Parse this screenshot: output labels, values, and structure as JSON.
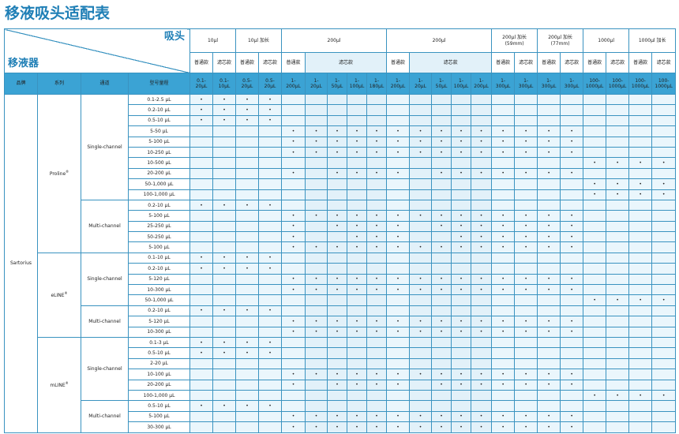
{
  "title": "移液吸头适配表",
  "header": {
    "tip_label": "吸头",
    "pipette_label": "移液器",
    "tip_groups": [
      {
        "label": "10μl",
        "sub": ""
      },
      {
        "label": "10μl 加长",
        "sub": ""
      },
      {
        "label": "200μl",
        "sub": ""
      },
      {
        "label": "200μl",
        "sub": ""
      },
      {
        "label": "200μl 加长",
        "sub": "(59mm)"
      },
      {
        "label": "200μl 加长",
        "sub": "(77mm)"
      },
      {
        "label": "1000μl",
        "sub": ""
      },
      {
        "label": "1000μl 加长",
        "sub": ""
      }
    ],
    "type_labels": [
      "普通款",
      "滤芯款",
      "普通款",
      "滤芯款",
      "普通款",
      "滤芯款",
      "普通款",
      "滤芯款",
      "普通款",
      "滤芯款",
      "普通款",
      "滤芯款",
      "普通款",
      "滤芯款",
      "普通款",
      "滤芯款"
    ],
    "col_headers": [
      "品牌",
      "系列",
      "通道",
      "型号量程"
    ],
    "tip_ranges": [
      "0.1-\n20μL",
      "0.1-\n10μL",
      "0.5-\n20μL",
      "0.5-\n20μL",
      "1-\n200μL",
      "1-\n20μL",
      "1-\n50μL",
      "1-\n100μL",
      "1-\n180μL",
      "1-\n200μL",
      "1-\n20μL",
      "1-\n50μL",
      "1-\n100μL",
      "1-\n200μL",
      "1-\n300μL",
      "1-\n300μL",
      "1-\n300μL",
      "1-\n300μL",
      "100-\n1000μL",
      "100-\n1000μL",
      "100-\n1000μL",
      "100-\n1000μL"
    ]
  },
  "brand": "Sartorius",
  "series": [
    {
      "name": "Proline",
      "mark": "®",
      "rows": 15
    },
    {
      "name": "eLINE",
      "mark": "®",
      "rows": 8
    },
    {
      "name": "mLINE",
      "mark": "®",
      "rows": 9
    }
  ],
  "channels": [
    {
      "name": "Single-channel",
      "rows": 10
    },
    {
      "name": "Multi-channel",
      "rows": 5
    },
    {
      "name": "Single-channel",
      "rows": 5
    },
    {
      "name": "Multi-channel",
      "rows": 3
    },
    {
      "name": "Single-channel",
      "rows": 6
    },
    {
      "name": "Multi-channel",
      "rows": 3
    }
  ],
  "rows": [
    {
      "model": "0.1-2.5 µL",
      "marks": [
        0,
        1,
        2,
        3
      ]
    },
    {
      "model": "0.2-10 µL",
      "marks": [
        0,
        1,
        2,
        3
      ]
    },
    {
      "model": "0.5-10 µL",
      "marks": [
        0,
        1,
        2,
        3
      ]
    },
    {
      "model": "5-50 µL",
      "marks": [
        4,
        5,
        6,
        7,
        8,
        9,
        10,
        11,
        12,
        13,
        14,
        15,
        16,
        17
      ]
    },
    {
      "model": "5-100 µL",
      "marks": [
        4,
        5,
        6,
        7,
        8,
        9,
        10,
        11,
        12,
        13,
        14,
        15,
        16,
        17
      ]
    },
    {
      "model": "10-250 µL",
      "marks": [
        4,
        5,
        6,
        7,
        8,
        9,
        10,
        11,
        12,
        13,
        14,
        15,
        16,
        17
      ]
    },
    {
      "model": "10-500 µL",
      "marks": [
        18,
        19,
        20,
        21
      ]
    },
    {
      "model": "20-200 µL",
      "marks": [
        4,
        6,
        7,
        8,
        9,
        11,
        12,
        13,
        14,
        15,
        16,
        17
      ]
    },
    {
      "model": "50-1,000 µL",
      "marks": [
        18,
        19,
        20,
        21
      ]
    },
    {
      "model": "100-1,000 µL",
      "marks": [
        18,
        19,
        20,
        21
      ]
    },
    {
      "model": "0.2-10 µL",
      "marks": [
        0,
        1,
        2,
        3
      ]
    },
    {
      "model": "5-100 µL",
      "marks": [
        4,
        5,
        6,
        7,
        8,
        9,
        10,
        11,
        12,
        13,
        14,
        15,
        16,
        17
      ]
    },
    {
      "model": "25-250 µL",
      "marks": [
        4,
        6,
        7,
        8,
        9,
        11,
        12,
        13,
        14,
        15,
        16,
        17
      ]
    },
    {
      "model": "50-250 µL",
      "marks": [
        4,
        7,
        8,
        9,
        12,
        13,
        14,
        15,
        16,
        17
      ]
    },
    {
      "model": "5-100 µL",
      "marks": [
        4,
        5,
        6,
        7,
        8,
        9,
        10,
        11,
        12,
        13,
        14,
        15,
        16,
        17
      ]
    },
    {
      "model": "0.1-10 µL",
      "marks": [
        0,
        1,
        2,
        3
      ]
    },
    {
      "model": "0.2-10 µL",
      "marks": [
        0,
        1,
        2,
        3
      ]
    },
    {
      "model": "5-120 µL",
      "marks": [
        4,
        5,
        6,
        7,
        8,
        9,
        10,
        11,
        12,
        13,
        14,
        15,
        16,
        17
      ]
    },
    {
      "model": "10-300 µL",
      "marks": [
        4,
        5,
        6,
        7,
        8,
        9,
        10,
        11,
        12,
        13,
        14,
        15,
        16,
        17
      ]
    },
    {
      "model": "50-1,000 µL",
      "marks": [
        18,
        19,
        20,
        21
      ]
    },
    {
      "model": "0.2-10 µL",
      "marks": [
        0,
        1,
        2,
        3
      ]
    },
    {
      "model": "5-120 µL",
      "marks": [
        4,
        5,
        6,
        7,
        8,
        9,
        10,
        11,
        12,
        13,
        14,
        15,
        16,
        17
      ]
    },
    {
      "model": "10-300 µL",
      "marks": [
        4,
        5,
        6,
        7,
        8,
        9,
        10,
        11,
        12,
        13,
        14,
        15,
        16,
        17
      ]
    },
    {
      "model": "0.1-3 µL",
      "marks": [
        0,
        1,
        2,
        3
      ]
    },
    {
      "model": "0.5-10 µL",
      "marks": [
        0,
        1,
        2,
        3
      ]
    },
    {
      "model": "2-20 µL",
      "marks": []
    },
    {
      "model": "10-100 µL",
      "marks": [
        4,
        5,
        6,
        7,
        8,
        9,
        10,
        11,
        12,
        13,
        14,
        15,
        16,
        17
      ]
    },
    {
      "model": "20-200 µL",
      "marks": [
        4,
        6,
        7,
        8,
        9,
        11,
        12,
        13,
        14,
        15,
        16,
        17
      ]
    },
    {
      "model": "100-1,000 µL",
      "marks": [
        18,
        19,
        20,
        21
      ]
    },
    {
      "model": "0.5-10 µL",
      "marks": [
        0,
        1,
        2,
        3
      ]
    },
    {
      "model": "5-100 µL",
      "marks": [
        4,
        5,
        6,
        7,
        8,
        9,
        10,
        11,
        12,
        13,
        14,
        15,
        16,
        17
      ]
    },
    {
      "model": "30-300 µL",
      "marks": [
        4,
        5,
        6,
        7,
        8,
        9,
        10,
        11,
        12,
        13,
        14,
        15,
        16,
        17
      ]
    }
  ],
  "mark_symbol": "•"
}
